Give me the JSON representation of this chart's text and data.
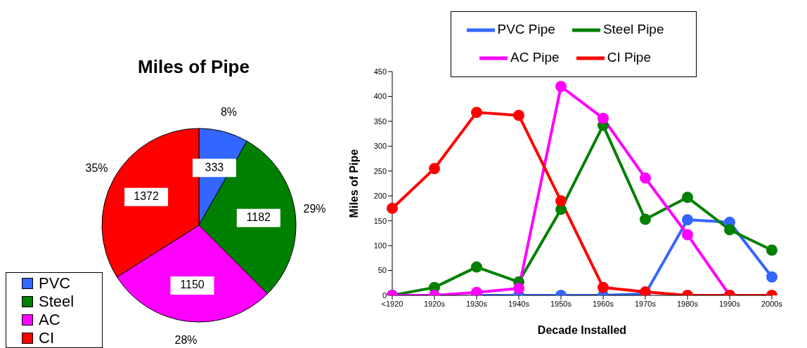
{
  "chart_data": [
    {
      "type": "pie",
      "title": "Miles of Pipe",
      "categories": [
        "PVC",
        "Steel",
        "AC",
        "CI"
      ],
      "values": [
        333,
        1182,
        1150,
        1372
      ],
      "colors": [
        "#3366ff",
        "#008000",
        "#ff00ff",
        "#ff0000"
      ],
      "value_labels": [
        "333",
        "1182",
        "1150",
        "1372"
      ],
      "annotations": [
        "8%",
        "29%",
        "28%",
        "35%"
      ],
      "legend": "bottom left"
    },
    {
      "type": "line",
      "xlabel": "Decade Installed",
      "ylabel": "Miles of Pipe",
      "categories": [
        "<1920",
        "1920s",
        "1930s",
        "1940s",
        "1950s",
        "1960s",
        "1970s",
        "1980s",
        "1990s",
        "2000s"
      ],
      "series": [
        {
          "name": "PVC Pipe",
          "color": "#3366ff",
          "values": [
            null,
            null,
            0,
            0,
            0,
            0,
            3,
            152,
            147,
            37
          ]
        },
        {
          "name": "Steel Pipe",
          "color": "#008000",
          "values": [
            0,
            16,
            57,
            27,
            173,
            342,
            153,
            197,
            132,
            91
          ]
        },
        {
          "name": "AC Pipe",
          "color": "#ff00ff",
          "values": [
            0,
            0,
            6,
            14,
            420,
            356,
            236,
            122,
            0,
            null
          ]
        },
        {
          "name": "CI Pipe",
          "color": "#ff0000",
          "values": [
            175,
            255,
            368,
            362,
            190,
            16,
            7,
            0,
            0,
            0
          ]
        }
      ],
      "ylim": [
        0,
        450
      ],
      "yticks": [
        0,
        50,
        100,
        150,
        200,
        250,
        300,
        350,
        400,
        450
      ],
      "grid": false,
      "legend": "top",
      "marker": "circle",
      "line_style": "solid"
    }
  ]
}
